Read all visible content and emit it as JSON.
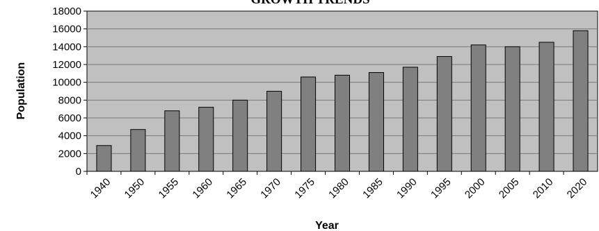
{
  "chart_data": {
    "type": "bar",
    "title": "GROWTH TRENDS",
    "xlabel": "Year",
    "ylabel": "Population",
    "categories": [
      "1940",
      "1950",
      "1955",
      "1960",
      "1965",
      "1970",
      "1975",
      "1980",
      "1985",
      "1990",
      "1995",
      "2000",
      "2005",
      "2010",
      "2020"
    ],
    "values": [
      2900,
      4700,
      6800,
      7200,
      8000,
      9000,
      10600,
      10800,
      11100,
      11700,
      12900,
      14200,
      14000,
      14500,
      15800
    ],
    "ylim": [
      0,
      18000
    ],
    "yticks": [
      "0",
      "2000",
      "4000",
      "6000",
      "8000",
      "10000",
      "12000",
      "14000",
      "16000",
      "18000"
    ],
    "grid": true,
    "legend": "none",
    "colors": {
      "plot_background": "#c0c0c0",
      "bar_fill": "#808080",
      "bar_stroke": "#000000",
      "gridline": "#7a7a7a"
    }
  }
}
